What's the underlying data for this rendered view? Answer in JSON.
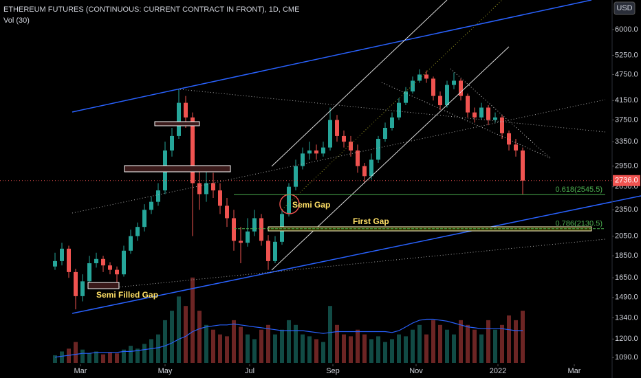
{
  "chart_data": {
    "type": "candlestick",
    "title": "ETHEREUM FUTURES (CONTINUOUS: CURRENT CONTRACT IN FRONT), 1D, CME",
    "volume_label": "Vol (30)",
    "currency": "USD",
    "log_scale": true,
    "up_color": "#26a69a",
    "down_color": "#ef5350",
    "ylim": [
      1060,
      7000
    ],
    "yticks": [
      {
        "value": 1090,
        "label": "1090.0"
      },
      {
        "value": 1200,
        "label": "1200.0"
      },
      {
        "value": 1340,
        "label": "1340.0"
      },
      {
        "value": 1490,
        "label": "1490.0"
      },
      {
        "value": 1650,
        "label": "1650.0"
      },
      {
        "value": 1850,
        "label": "1850.0"
      },
      {
        "value": 2050,
        "label": "2050.0"
      },
      {
        "value": 2350,
        "label": "2350.0"
      },
      {
        "value": 2650,
        "label": "2650.0"
      },
      {
        "value": 2950,
        "label": "2950.0"
      },
      {
        "value": 3350,
        "label": "3350.0"
      },
      {
        "value": 3750,
        "label": "3750.0"
      },
      {
        "value": 4150,
        "label": "4150.0"
      },
      {
        "value": 4750,
        "label": "4750.0"
      },
      {
        "value": 5250,
        "label": "5250.0"
      },
      {
        "value": 6000,
        "label": "6000.0"
      }
    ],
    "xlim": [
      -8,
      81
    ],
    "xticks": [
      {
        "value": 3.7,
        "label": "Mar"
      },
      {
        "value": 16,
        "label": "May"
      },
      {
        "value": 28.3,
        "label": "Jul"
      },
      {
        "value": 40.4,
        "label": "Sep"
      },
      {
        "value": 52.5,
        "label": "Nov"
      },
      {
        "value": 64.4,
        "label": "2022"
      },
      {
        "value": 75.5,
        "label": "Mar"
      }
    ],
    "candles": [
      [
        1750,
        1880,
        1720,
        1800
      ],
      [
        1800,
        1980,
        1760,
        1920
      ],
      [
        1920,
        1950,
        1650,
        1700
      ],
      [
        1700,
        1730,
        1400,
        1500
      ],
      [
        1500,
        1680,
        1460,
        1620
      ],
      [
        1620,
        1850,
        1590,
        1780
      ],
      [
        1780,
        1880,
        1740,
        1820
      ],
      [
        1820,
        1850,
        1700,
        1760
      ],
      [
        1760,
        1790,
        1680,
        1720
      ],
      [
        1720,
        1750,
        1600,
        1680
      ],
      [
        1680,
        1950,
        1660,
        1900
      ],
      [
        1900,
        2120,
        1870,
        2050
      ],
      [
        2050,
        2200,
        2000,
        2150
      ],
      [
        2150,
        2420,
        2100,
        2350
      ],
      [
        2350,
        2520,
        2300,
        2450
      ],
      [
        2450,
        2700,
        2400,
        2600
      ],
      [
        2600,
        3350,
        2550,
        3200
      ],
      [
        3200,
        3600,
        3100,
        3450
      ],
      [
        3450,
        4400,
        3400,
        4100
      ],
      [
        4100,
        4250,
        3600,
        3800
      ],
      [
        3800,
        3900,
        2050,
        2700
      ],
      [
        2700,
        2950,
        2350,
        2550
      ],
      [
        2550,
        2900,
        2450,
        2700
      ],
      [
        2700,
        2850,
        2500,
        2600
      ],
      [
        2600,
        2700,
        2300,
        2400
      ],
      [
        2400,
        2500,
        2150,
        2250
      ],
      [
        2250,
        2350,
        1900,
        2000
      ],
      [
        2000,
        2150,
        1780,
        1980
      ],
      [
        1980,
        2250,
        1940,
        2100
      ],
      [
        2100,
        2350,
        2050,
        2250
      ],
      [
        2250,
        2300,
        1950,
        2000
      ],
      [
        2000,
        2060,
        1720,
        1800
      ],
      [
        1800,
        2050,
        1780,
        1990
      ],
      [
        1990,
        2350,
        1960,
        2300
      ],
      [
        2300,
        2700,
        2270,
        2650
      ],
      [
        2650,
        3050,
        2600,
        2950
      ],
      [
        2950,
        3250,
        2900,
        3150
      ],
      [
        3150,
        3350,
        3050,
        3200
      ],
      [
        3200,
        3300,
        3050,
        3150
      ],
      [
        3150,
        3350,
        3100,
        3250
      ],
      [
        3250,
        4000,
        3200,
        3750
      ],
      [
        3750,
        3850,
        3350,
        3450
      ],
      [
        3450,
        3550,
        3250,
        3350
      ],
      [
        3350,
        3450,
        3100,
        3200
      ],
      [
        3200,
        3300,
        2850,
        2950
      ],
      [
        2950,
        3000,
        2700,
        2800
      ],
      [
        2800,
        3150,
        2750,
        3050
      ],
      [
        3050,
        3450,
        3000,
        3400
      ],
      [
        3400,
        3700,
        3350,
        3600
      ],
      [
        3600,
        3900,
        3550,
        3800
      ],
      [
        3800,
        4200,
        3750,
        4100
      ],
      [
        4100,
        4450,
        4050,
        4350
      ],
      [
        4350,
        4700,
        4300,
        4600
      ],
      [
        4600,
        4880,
        4550,
        4750
      ],
      [
        4750,
        4850,
        4550,
        4650
      ],
      [
        4650,
        4700,
        4150,
        4250
      ],
      [
        4250,
        4350,
        3950,
        4050
      ],
      [
        4050,
        4600,
        4000,
        4500
      ],
      [
        4500,
        4800,
        4400,
        4600
      ],
      [
        4600,
        4650,
        4150,
        4250
      ],
      [
        4250,
        4300,
        3800,
        3900
      ],
      [
        3900,
        4000,
        3700,
        3800
      ],
      [
        3800,
        4100,
        3750,
        4000
      ],
      [
        4000,
        4050,
        3650,
        3750
      ],
      [
        3750,
        3900,
        3700,
        3800
      ],
      [
        3800,
        3850,
        3400,
        3500
      ],
      [
        3500,
        3550,
        3200,
        3300
      ],
      [
        3300,
        3400,
        3100,
        3200
      ],
      [
        3200,
        3250,
        2550,
        2736
      ]
    ],
    "vlim": [
      0,
      100
    ],
    "volume": [
      8,
      12,
      15,
      22,
      14,
      10,
      12,
      9,
      11,
      10,
      14,
      18,
      15,
      20,
      25,
      30,
      45,
      55,
      70,
      60,
      90,
      55,
      40,
      35,
      30,
      28,
      45,
      38,
      30,
      25,
      35,
      40,
      30,
      35,
      45,
      40,
      30,
      28,
      25,
      22,
      60,
      40,
      30,
      28,
      35,
      30,
      25,
      28,
      22,
      25,
      30,
      28,
      35,
      40,
      30,
      45,
      40,
      35,
      30,
      45,
      40,
      35,
      30,
      45,
      35,
      40,
      50,
      45,
      55
    ],
    "volume_ma_color": "#2962ff",
    "volume_ma": [
      6,
      7,
      8,
      9,
      10,
      10,
      11,
      11,
      11,
      11,
      12,
      12,
      13,
      14,
      15,
      16,
      18,
      21,
      25,
      28,
      33,
      36,
      38,
      39,
      40,
      40,
      41,
      40,
      39,
      38,
      37,
      36,
      35,
      34,
      34,
      34,
      34,
      33,
      32,
      31,
      32,
      33,
      33,
      33,
      33,
      33,
      33,
      33,
      33,
      32,
      34,
      38,
      42,
      45,
      46,
      46,
      45,
      44,
      42,
      40,
      38,
      37,
      36,
      36,
      36,
      36,
      35,
      34,
      34
    ],
    "last_price": {
      "value": 2736,
      "label": "2736.0"
    },
    "fib_levels": [
      {
        "value": 2545.5,
        "label": "0.618(2545.5)"
      },
      {
        "value": 2130.5,
        "label": "0.786(2130.5)"
      }
    ],
    "annotations": [
      "Semi Filled Gap",
      "Semi Gap",
      "First Gap"
    ]
  }
}
